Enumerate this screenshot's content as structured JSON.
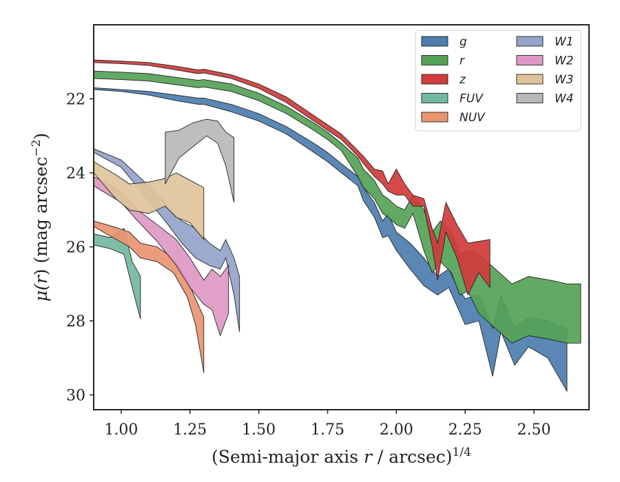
{
  "chart_data": {
    "type": "area",
    "xlabel_main": "(Semi-major axis ",
    "xlabel_var": "r",
    "xlabel_rest": " / arcsec)",
    "xlabel_sup": "1/4",
    "ylabel_main": "μ(",
    "ylabel_var": "r",
    "ylabel_rest": ") (mag arcsec",
    "ylabel_sup": "−2",
    "ylabel_end": ")",
    "xlim": [
      0.9,
      2.7
    ],
    "ylim": [
      30.4,
      20.0
    ],
    "y_inverted": true,
    "x_ticks": [
      1.0,
      1.25,
      1.5,
      1.75,
      2.0,
      2.25,
      2.5
    ],
    "x_tick_labels": [
      "1.00",
      "1.25",
      "1.50",
      "1.75",
      "2.00",
      "2.25",
      "2.50"
    ],
    "y_ticks": [
      22,
      24,
      26,
      28,
      30
    ],
    "y_tick_labels": [
      "22",
      "24",
      "26",
      "28",
      "30"
    ],
    "grid": false,
    "legend_position": "top-right",
    "series": [
      {
        "name": "g",
        "color": "#4C7DAE",
        "x": [
          0.9,
          1.0,
          1.1,
          1.2,
          1.28,
          1.3,
          1.4,
          1.5,
          1.6,
          1.7,
          1.75,
          1.8,
          1.86,
          1.88,
          1.92,
          1.95,
          1.97,
          2.0,
          2.05,
          2.1,
          2.15,
          2.19,
          2.22,
          2.25,
          2.3,
          2.35,
          2.38,
          2.43,
          2.48,
          2.55,
          2.62
        ],
        "y_upper": [
          21.7,
          21.75,
          21.8,
          21.9,
          21.98,
          21.98,
          22.15,
          22.4,
          22.75,
          23.2,
          23.45,
          23.75,
          24.1,
          24.4,
          24.8,
          25.3,
          25.1,
          25.6,
          25.9,
          26.3,
          26.8,
          26.6,
          27.05,
          27.4,
          27.3,
          28.2,
          27.3,
          28.2,
          27.9,
          28.0,
          28.2
        ],
        "y_lower": [
          21.75,
          21.8,
          21.9,
          22.05,
          22.15,
          22.15,
          22.35,
          22.6,
          22.95,
          23.45,
          23.7,
          24.0,
          24.35,
          24.75,
          25.2,
          25.75,
          25.7,
          26.1,
          26.6,
          27.05,
          27.3,
          27.1,
          27.6,
          28.1,
          28.0,
          29.5,
          28.3,
          29.2,
          28.7,
          29.0,
          29.9
        ]
      },
      {
        "name": "r",
        "color": "#55A257",
        "x": [
          0.9,
          1.0,
          1.1,
          1.2,
          1.28,
          1.3,
          1.4,
          1.5,
          1.6,
          1.7,
          1.75,
          1.8,
          1.86,
          1.88,
          1.92,
          1.95,
          1.97,
          2.0,
          2.03,
          2.06,
          2.1,
          2.13,
          2.16,
          2.2,
          2.23,
          2.26,
          2.3,
          2.36,
          2.42,
          2.48,
          2.56,
          2.62,
          2.67
        ],
        "y_upper": [
          21.25,
          21.28,
          21.32,
          21.42,
          21.5,
          21.48,
          21.6,
          21.85,
          22.2,
          22.65,
          22.9,
          23.2,
          23.6,
          23.9,
          24.2,
          24.6,
          24.7,
          24.9,
          25.0,
          24.6,
          25.0,
          25.6,
          25.3,
          25.6,
          26.2,
          26.1,
          26.2,
          26.6,
          27.0,
          26.8,
          26.9,
          27.0,
          27.0
        ]
      },
      {
        "name": "z",
        "color": "#D03B3B",
        "x": [
          0.9,
          1.0,
          1.1,
          1.2,
          1.28,
          1.3,
          1.4,
          1.5,
          1.6,
          1.7,
          1.75,
          1.8,
          1.86,
          1.88,
          1.92,
          1.95,
          1.97,
          2.0,
          2.03,
          2.06,
          2.1,
          2.13,
          2.15,
          2.18,
          2.22,
          2.26,
          2.3,
          2.34
        ],
        "y_upper": [
          20.95,
          20.98,
          21.02,
          21.12,
          21.22,
          21.2,
          21.35,
          21.6,
          21.95,
          22.45,
          22.7,
          22.95,
          23.4,
          23.55,
          23.9,
          23.95,
          24.3,
          23.9,
          24.3,
          24.6,
          24.7,
          25.5,
          25.9,
          24.8,
          25.4,
          25.9,
          25.85,
          25.8
        ],
        "y_lower": [
          21.02,
          21.05,
          21.1,
          21.22,
          21.32,
          21.3,
          21.45,
          21.72,
          22.1,
          22.6,
          22.85,
          23.1,
          23.55,
          23.75,
          24.1,
          24.3,
          24.5,
          24.6,
          24.6,
          24.9,
          24.9,
          26.0,
          26.9,
          25.6,
          26.3,
          27.3,
          26.7,
          27.1
        ]
      },
      {
        "name": "FUV",
        "color": "#73B8A0",
        "x": [
          0.9,
          0.96,
          1.01,
          1.04,
          1.07
        ],
        "y_upper": [
          25.65,
          25.75,
          25.5,
          26.4,
          26.8
        ],
        "y_lower": [
          25.95,
          26.05,
          26.2,
          27.1,
          27.95
        ]
      },
      {
        "name": "NUV",
        "color": "#E99471",
        "x": [
          0.9,
          0.97,
          1.03,
          1.07,
          1.13,
          1.19,
          1.24,
          1.27,
          1.3
        ],
        "y_upper": [
          25.3,
          25.45,
          25.6,
          25.9,
          26.0,
          26.3,
          26.9,
          27.4,
          27.9
        ],
        "y_lower": [
          25.45,
          25.75,
          26.0,
          26.3,
          26.4,
          26.7,
          27.35,
          28.1,
          29.4
        ]
      },
      {
        "name": "W1",
        "color": "#94A3C9",
        "x": [
          0.9,
          1.0,
          1.05,
          1.1,
          1.17,
          1.22,
          1.27,
          1.32,
          1.36,
          1.38,
          1.41,
          1.43
        ],
        "y_upper": [
          23.35,
          23.65,
          24.0,
          24.35,
          24.9,
          25.3,
          25.5,
          25.9,
          26.1,
          25.8,
          26.3,
          26.8
        ],
        "y_lower": [
          23.45,
          23.85,
          24.3,
          24.75,
          25.4,
          25.9,
          26.3,
          26.5,
          26.6,
          26.3,
          27.3,
          28.3
        ]
      },
      {
        "name": "W2",
        "color": "#DE98C6",
        "x": [
          0.9,
          1.0,
          1.06,
          1.13,
          1.2,
          1.25,
          1.3,
          1.33,
          1.36,
          1.39
        ],
        "y_upper": [
          24.1,
          24.5,
          25.0,
          25.4,
          25.8,
          26.3,
          26.9,
          26.6,
          26.8,
          26.5
        ],
        "y_lower": [
          24.35,
          24.8,
          25.3,
          25.85,
          26.5,
          27.1,
          27.55,
          27.7,
          28.4,
          27.8
        ]
      },
      {
        "name": "W3",
        "color": "#E0C39B",
        "x": [
          0.9,
          0.98,
          1.03,
          1.1,
          1.16,
          1.2,
          1.25,
          1.3
        ],
        "y_upper": [
          23.7,
          24.05,
          24.3,
          24.25,
          24.15,
          24.0,
          24.2,
          24.4
        ],
        "y_lower": [
          24.0,
          24.7,
          25.0,
          25.1,
          24.9,
          25.2,
          25.35,
          25.8
        ]
      },
      {
        "name": "W4",
        "color": "#B8B8B8",
        "x": [
          1.16,
          1.21,
          1.26,
          1.31,
          1.35,
          1.38,
          1.41
        ],
        "y_upper": [
          22.9,
          22.85,
          22.65,
          22.55,
          22.6,
          22.9,
          23.05
        ],
        "y_lower": [
          24.3,
          23.6,
          23.3,
          23.0,
          23.2,
          23.8,
          24.8
        ]
      }
    ]
  }
}
